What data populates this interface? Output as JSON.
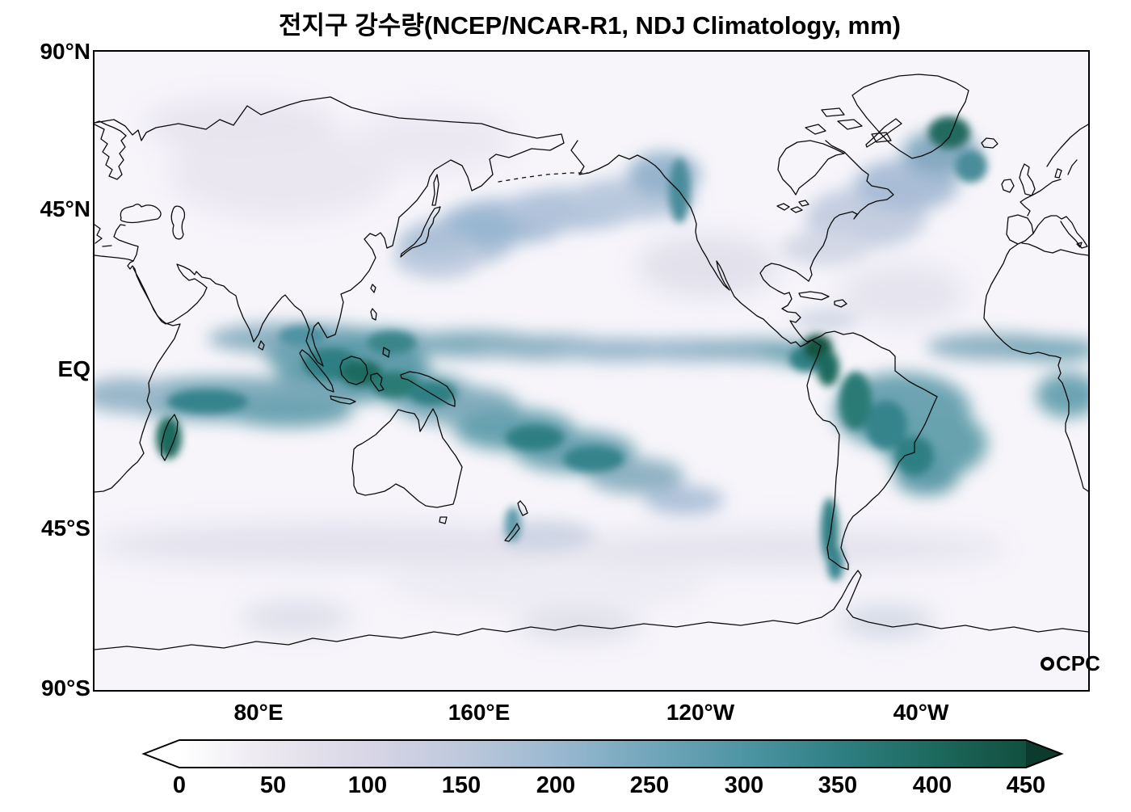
{
  "title": "전지구 강수량(NCEP/NCAR-R1, NDJ Climatology, mm)",
  "map": {
    "y_ticks": [
      "90°N",
      "45°N",
      "EQ",
      "45°S",
      "90°S"
    ],
    "x_ticks": [
      "80°E",
      "160°E",
      "120°W",
      "40°W"
    ],
    "logo_text": "CPC"
  },
  "colorbar": {
    "ticks": [
      "0",
      "50",
      "100",
      "150",
      "200",
      "250",
      "300",
      "350",
      "400",
      "450"
    ],
    "colors": [
      "#ffffff",
      "#eae7ef",
      "#d8d6e6",
      "#bec8dc",
      "#9ab9d0",
      "#72a6bb",
      "#4e95a4",
      "#2f8084",
      "#1d6a5f",
      "#124f3e"
    ],
    "under_color": "#ffffff",
    "over_color": "#0c3a2c"
  },
  "chart_data": {
    "type": "heatmap",
    "title": "전지구 강수량(NCEP/NCAR-R1, NDJ Climatology, mm)",
    "units": "mm",
    "value_range": [
      0,
      450
    ],
    "colorbar_ticks": [
      0,
      50,
      100,
      150,
      200,
      250,
      300,
      350,
      400,
      450
    ],
    "x_tick_labels": [
      "80°E",
      "160°E",
      "120°W",
      "40°W"
    ],
    "y_tick_labels": [
      "90°N",
      "45°N",
      "EQ",
      "45°S",
      "90°S"
    ],
    "legend_position": "bottom",
    "annotation": "CPC"
  }
}
